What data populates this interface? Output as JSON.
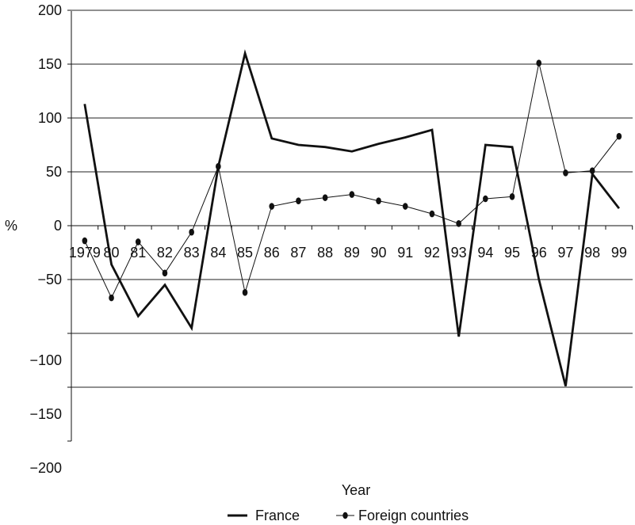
{
  "chart_data": {
    "type": "line",
    "title": "",
    "xlabel": "Year",
    "ylabel": "%",
    "ylim": [
      -200,
      200
    ],
    "yticks": [
      200,
      150,
      100,
      50,
      0,
      -50,
      -100,
      -150,
      -200
    ],
    "ytick_labels": [
      "200",
      "150",
      "100",
      "50",
      "0",
      "−50",
      "−100",
      "−150",
      "−200"
    ],
    "x_tick_labels": [
      "1979",
      "80",
      "81",
      "82",
      "83",
      "84",
      "85",
      "86",
      "87",
      "88",
      "89",
      "90",
      "91",
      "92",
      "93",
      "94",
      "95",
      "96",
      "97",
      "98",
      "99"
    ],
    "gridlines": [
      200,
      150,
      100,
      50,
      -50,
      -100,
      -150
    ],
    "series": [
      {
        "name": "France",
        "style": "thick-line",
        "points": [
          {
            "t": 0.5,
            "y": 113
          },
          {
            "t": 1.5,
            "y": -36
          },
          {
            "t": 2.5,
            "y": -84
          },
          {
            "t": 3.5,
            "y": -55
          },
          {
            "t": 4.5,
            "y": -95
          },
          {
            "t": 5.5,
            "y": 55
          },
          {
            "t": 6.5,
            "y": 160
          },
          {
            "t": 7.5,
            "y": 81
          },
          {
            "t": 8.5,
            "y": 75
          },
          {
            "t": 9.5,
            "y": 73
          },
          {
            "t": 10.5,
            "y": 69
          },
          {
            "t": 11.5,
            "y": 76
          },
          {
            "t": 12.5,
            "y": 82
          },
          {
            "t": 13.5,
            "y": 89
          },
          {
            "t": 14.5,
            "y": -103
          },
          {
            "t": 15.5,
            "y": 75
          },
          {
            "t": 16.5,
            "y": 73
          },
          {
            "t": 17.5,
            "y": -50
          },
          {
            "t": 18.5,
            "y": -149
          },
          {
            "t": 19.5,
            "y": 48
          },
          {
            "t": 20.5,
            "y": 16
          }
        ]
      },
      {
        "name": "Foreign countries",
        "style": "thin-line-dots",
        "points": [
          {
            "t": 0.5,
            "y": -14
          },
          {
            "t": 1.5,
            "y": -67
          },
          {
            "t": 2.5,
            "y": -15
          },
          {
            "t": 3.5,
            "y": -44
          },
          {
            "t": 4.5,
            "y": -6
          },
          {
            "t": 5.5,
            "y": 55
          },
          {
            "t": 6.5,
            "y": -62
          },
          {
            "t": 7.5,
            "y": 18
          },
          {
            "t": 8.5,
            "y": 23
          },
          {
            "t": 9.5,
            "y": 26
          },
          {
            "t": 10.5,
            "y": 29
          },
          {
            "t": 11.5,
            "y": 23
          },
          {
            "t": 12.5,
            "y": 18
          },
          {
            "t": 13.5,
            "y": 11
          },
          {
            "t": 14.5,
            "y": 2
          },
          {
            "t": 15.5,
            "y": 25
          },
          {
            "t": 16.5,
            "y": 27
          },
          {
            "t": 17.5,
            "y": 151
          },
          {
            "t": 18.5,
            "y": 49
          },
          {
            "t": 19.5,
            "y": 51
          },
          {
            "t": 20.5,
            "y": 83
          }
        ]
      }
    ],
    "legend": {
      "placement": "bottom",
      "entries": [
        "France",
        "Foreign countries"
      ]
    },
    "colors": {
      "line": "#111111",
      "grid": "#222222",
      "background": "#ffffff"
    }
  }
}
